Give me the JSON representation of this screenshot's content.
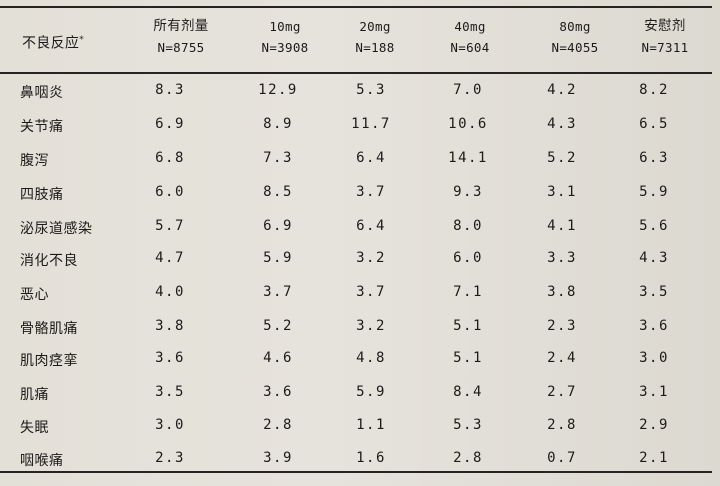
{
  "header": {
    "col0": "不良反应",
    "col0_sup": "*",
    "columns": [
      {
        "title": "所有剂量",
        "n": "N=8755"
      },
      {
        "title": "10mg",
        "n": "N=3908"
      },
      {
        "title": "20mg",
        "n": "N=188"
      },
      {
        "title": "40mg",
        "n": "N=604"
      },
      {
        "title": "80mg",
        "n": "N=4055"
      },
      {
        "title": "安慰剂",
        "n": "N=7311"
      }
    ]
  },
  "rows": [
    {
      "label": "鼻咽炎",
      "values": [
        "8.3",
        "12.9",
        "5.3",
        "7.0",
        "4.2",
        "8.2"
      ]
    },
    {
      "label": "关节痛",
      "values": [
        "6.9",
        "8.9",
        "11.7",
        "10.6",
        "4.3",
        "6.5"
      ]
    },
    {
      "label": "腹泻",
      "values": [
        "6.8",
        "7.3",
        "6.4",
        "14.1",
        "5.2",
        "6.3"
      ]
    },
    {
      "label": "四肢痛",
      "values": [
        "6.0",
        "8.5",
        "3.7",
        "9.3",
        "3.1",
        "5.9"
      ]
    },
    {
      "label": "泌尿道感染",
      "values": [
        "5.7",
        "6.9",
        "6.4",
        "8.0",
        "4.1",
        "5.6"
      ]
    },
    {
      "label": "消化不良",
      "values": [
        "4.7",
        "5.9",
        "3.2",
        "6.0",
        "3.3",
        "4.3"
      ]
    },
    {
      "label": "恶心",
      "values": [
        "4.0",
        "3.7",
        "3.7",
        "7.1",
        "3.8",
        "3.5"
      ]
    },
    {
      "label": "骨骼肌痛",
      "values": [
        "3.8",
        "5.2",
        "3.2",
        "5.1",
        "2.3",
        "3.6"
      ]
    },
    {
      "label": "肌肉痉挛",
      "values": [
        "3.6",
        "4.6",
        "4.8",
        "5.1",
        "2.4",
        "3.0"
      ]
    },
    {
      "label": "肌痛",
      "values": [
        "3.5",
        "3.6",
        "5.9",
        "8.4",
        "2.7",
        "3.1"
      ]
    },
    {
      "label": "失眠",
      "values": [
        "3.0",
        "2.8",
        "1.1",
        "5.3",
        "2.8",
        "2.9"
      ]
    },
    {
      "label": "咽喉痛",
      "values": [
        "2.3",
        "3.9",
        "1.6",
        "2.8",
        "0.7",
        "2.1"
      ]
    }
  ]
}
